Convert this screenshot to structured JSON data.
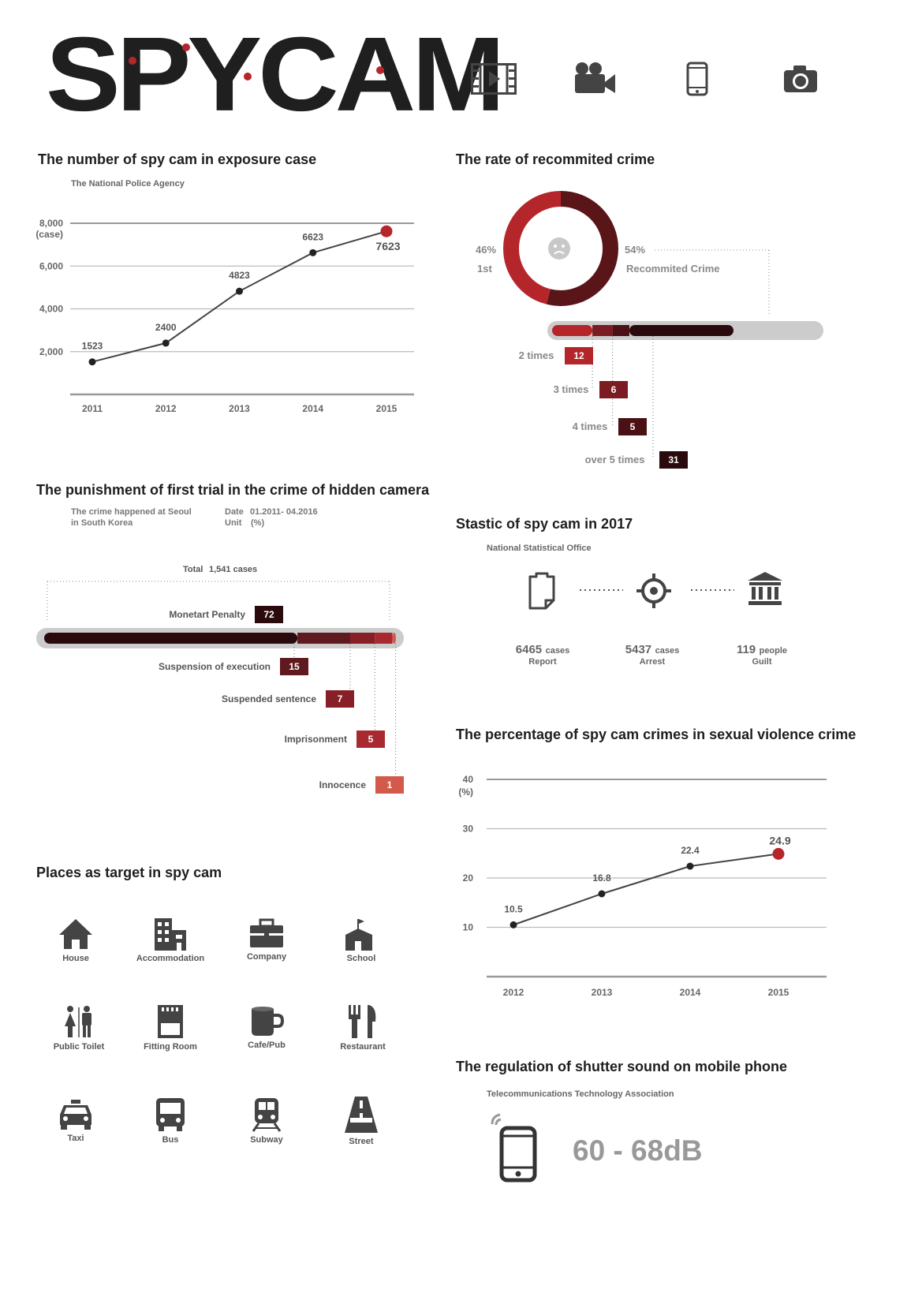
{
  "logo": {
    "title": "SPYCAM"
  },
  "header_icons": [
    "film-icon",
    "video-camera-icon",
    "mobile-phone-icon",
    "camera-icon"
  ],
  "colors": {
    "accent": "#b5262b",
    "dark": "#2a0a0d",
    "mid": "#6b1b1f",
    "grey": "#cccccc",
    "light": "#d35a4a"
  },
  "exposure": {
    "title": "The number of spy cam in exposure case",
    "source": "The National Police Agency"
  },
  "recommit": {
    "title": "The rate of recommited crime",
    "first_pct": "46%",
    "first_label": "1st",
    "recommit_pct": "54%",
    "recommit_label": "Recommited Crime",
    "breakdown": [
      {
        "label": "2 times",
        "value": "12"
      },
      {
        "label": "3 times",
        "value": "6"
      },
      {
        "label": "4 times",
        "value": "5"
      },
      {
        "label": "over 5 times",
        "value": "31"
      }
    ]
  },
  "punishment": {
    "title": "The punishment of first trial in the crime of hidden camera",
    "note_line1": "The crime happened at Seoul",
    "note_line2": "in South Korea",
    "date_label": "Date",
    "date_value": "01.2011- 04.2016",
    "unit_label": "Unit",
    "unit_value": "(%)",
    "total_label": "Total",
    "total_value": "1,541 cases",
    "items": [
      {
        "label": "Monetart Penalty",
        "value": "72"
      },
      {
        "label": "Suspension of execution",
        "value": "15"
      },
      {
        "label": "Suspended sentence",
        "value": "7"
      },
      {
        "label": "Imprisonment",
        "value": "5"
      },
      {
        "label": "Innocence",
        "value": "1"
      }
    ]
  },
  "stat2017": {
    "title": "Stastic of spy cam in 2017",
    "source": "National Statistical Office",
    "items": [
      {
        "number": "6465",
        "unit": "cases",
        "desc": "Report"
      },
      {
        "number": "5437",
        "unit": "cases",
        "desc": "Arrest"
      },
      {
        "number": "119",
        "unit": "people",
        "desc": "Guilt"
      }
    ]
  },
  "percentage": {
    "title": "The percentage of spy cam crimes in sexual violence crime"
  },
  "places": {
    "title": "Places as target in spy cam",
    "items": [
      {
        "label": "House",
        "icon": "house-icon"
      },
      {
        "label": "Accommodation",
        "icon": "building-icon"
      },
      {
        "label": "Company",
        "icon": "briefcase-icon"
      },
      {
        "label": "School",
        "icon": "school-icon"
      },
      {
        "label": "Public Toilet",
        "icon": "toilet-icon"
      },
      {
        "label": "Fitting Room",
        "icon": "fitting-room-icon"
      },
      {
        "label": "Cafe/Pub",
        "icon": "cup-icon"
      },
      {
        "label": "Restaurant",
        "icon": "fork-knife-icon"
      },
      {
        "label": "Taxi",
        "icon": "taxi-icon"
      },
      {
        "label": "Bus",
        "icon": "bus-icon"
      },
      {
        "label": "Subway",
        "icon": "subway-icon"
      },
      {
        "label": "Street",
        "icon": "road-icon"
      }
    ]
  },
  "shutter": {
    "title": "The regulation of shutter sound on mobile phone",
    "source": "Telecommunications Technology Association",
    "value": "60 - 68dB"
  },
  "chart_data": [
    {
      "type": "line",
      "x": [
        "2011",
        "2012",
        "2013",
        "2014",
        "2015"
      ],
      "values": [
        1523,
        2400,
        4823,
        6623,
        7623
      ],
      "data_labels": [
        "1523",
        "2400",
        "4823",
        "6623",
        "7623"
      ],
      "yticks": [
        "2,000",
        "4,000",
        "6,000",
        "8,000"
      ],
      "yunit": "(case)",
      "ylim": [
        0,
        8000
      ]
    },
    {
      "type": "line",
      "x": [
        "2012",
        "2013",
        "2014",
        "2015"
      ],
      "values": [
        10.5,
        16.8,
        22.4,
        24.9
      ],
      "data_labels": [
        "10.5",
        "16.8",
        "22.4",
        "24.9"
      ],
      "yticks": [
        "10",
        "20",
        "30",
        "40"
      ],
      "yunit": "(%)",
      "ylim": [
        0,
        40
      ]
    },
    {
      "type": "pie",
      "categories": [
        "1st",
        "Recommited Crime"
      ],
      "values": [
        46,
        54
      ]
    },
    {
      "type": "bar",
      "categories": [
        "2 times",
        "3 times",
        "4 times",
        "over 5 times"
      ],
      "values": [
        12,
        6,
        5,
        31
      ]
    },
    {
      "type": "bar",
      "categories": [
        "Monetart Penalty",
        "Suspension of execution",
        "Suspended sentence",
        "Imprisonment",
        "Innocence"
      ],
      "values": [
        72,
        15,
        7,
        5,
        1
      ]
    }
  ]
}
